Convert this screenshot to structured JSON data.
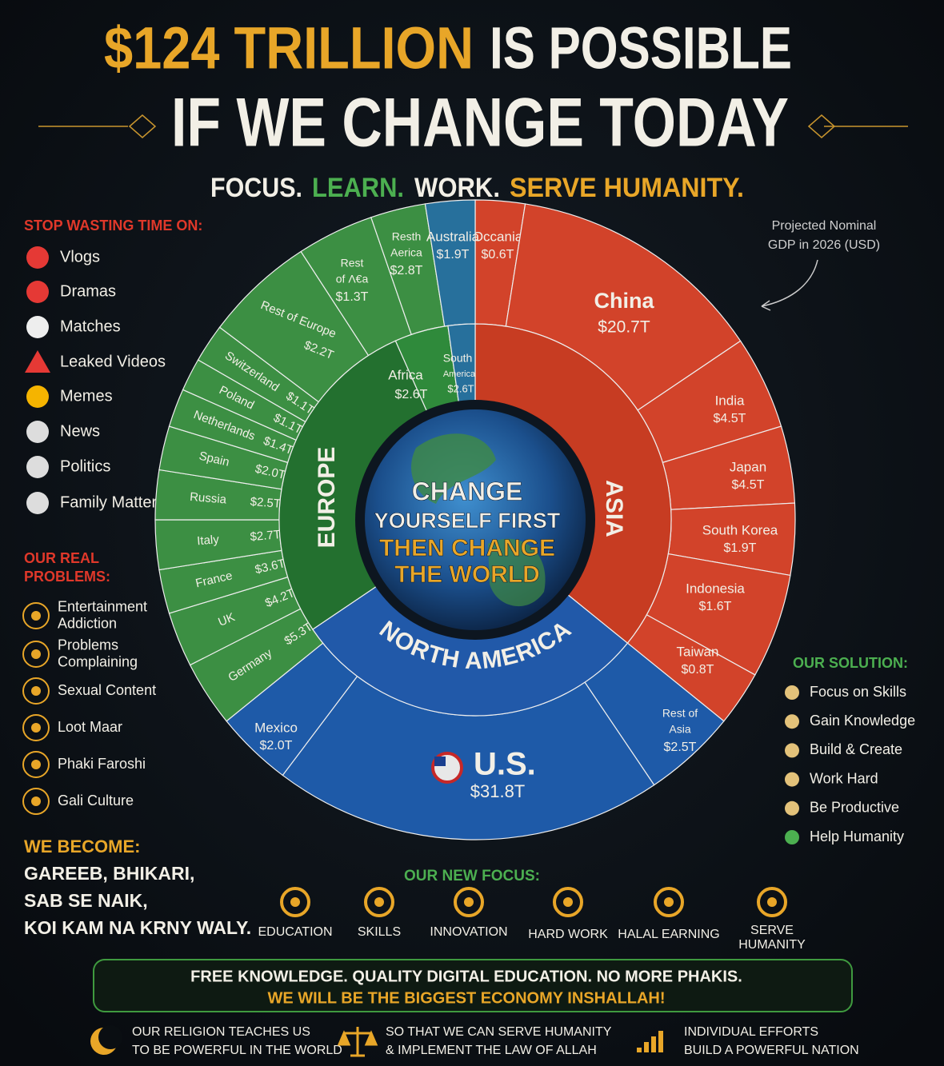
{
  "title": {
    "highlight": "$124 TRILLION",
    "rest": "IS POSSIBLE",
    "line2": "IF WE CHANGE TODAY"
  },
  "tagline": [
    "FOCUS.",
    "LEARN.",
    "WORK.",
    "SERVE HUMANITY."
  ],
  "stop_wasting": {
    "heading": "STOP WASTING TIME ON:",
    "items": [
      "Vlogs",
      "Dramas",
      "Matches",
      "Leaked Videos",
      "Memes",
      "News",
      "Politics",
      "Family Matters"
    ]
  },
  "real_problems": {
    "heading": [
      "OUR REAL",
      "PROBLEMS:"
    ],
    "items": [
      [
        "Entertainment",
        "Addiction"
      ],
      [
        "Problems",
        "Complaining"
      ],
      [
        "Sexual Content"
      ],
      [
        "Loot Maar"
      ],
      [
        "Phaki Faroshi"
      ],
      [
        "Gali Culture"
      ]
    ]
  },
  "we_become": {
    "heading": "WE BECOME:",
    "lines": [
      "GAREEB, BHIKARI,",
      "SAB SE NAIK,",
      "KOI KAM NA KRNY WALY."
    ]
  },
  "note": [
    "Projected Nominal",
    "GDP in 2026 (USD)"
  ],
  "sunburst": {
    "center": [
      "CHANGE",
      "YOURSELF FIRST",
      "THEN CHANGE",
      "THE WORLD"
    ],
    "regions": [
      {
        "name": "ASIA"
      },
      {
        "name": "NORTH AMERICA"
      },
      {
        "name": "EUROPE"
      },
      {
        "name": "Africa",
        "value": "$2.6T"
      },
      {
        "name": [
          "South",
          "America"
        ],
        "value": "$2.6T"
      }
    ],
    "segments": [
      {
        "name": "Occania",
        "value": "$0.6T"
      },
      {
        "name": "China",
        "value": "$20.7T"
      },
      {
        "name": "India",
        "value": "$4.5T"
      },
      {
        "name": "Japan",
        "value": "$4.5T"
      },
      {
        "name": "South Korea",
        "value": "$1.9T"
      },
      {
        "name": "Indonesia",
        "value": "$1.6T"
      },
      {
        "name": "Taiwan",
        "value": "$0.8T"
      },
      {
        "name": [
          "Rest of",
          "Asia"
        ],
        "value": "$2.5T"
      },
      {
        "name": "U.S.",
        "value": "$31.8T"
      },
      {
        "name": "Mexico",
        "value": "$2.0T"
      },
      {
        "name": "Germany",
        "value": "$5.3T"
      },
      {
        "name": "UK",
        "value": "$4.2T"
      },
      {
        "name": "France",
        "value": "$3.6T"
      },
      {
        "name": "Italy",
        "value": "$2.7T"
      },
      {
        "name": "Russia",
        "value": "$2.5T"
      },
      {
        "name": "Spain",
        "value": "$2.0T"
      },
      {
        "name": "Netherlands",
        "value": "$1.4T"
      },
      {
        "name": "Poland",
        "value": "$1.1T"
      },
      {
        "name": "Switzerland",
        "value": "$1.1T"
      },
      {
        "name": "Rest of Europe",
        "value": "$2.2T"
      },
      {
        "name": [
          "Rest",
          "of Λ€a"
        ],
        "value": "$1.3T"
      },
      {
        "name": [
          "Resth",
          "Aerica"
        ],
        "value": "$2.8T"
      },
      {
        "name": "Australia",
        "value": "$1.9T"
      }
    ]
  },
  "solution": {
    "heading": "OUR SOLUTION:",
    "items": [
      "Focus on Skills",
      "Gain Knowledge",
      "Build & Create",
      "Work Hard",
      "Be Productive",
      "Help Humanity"
    ]
  },
  "new_focus": {
    "heading": "OUR NEW FOCUS:",
    "items": [
      [
        "EDUCATION"
      ],
      [
        "SKILLS"
      ],
      [
        "INNOVATION"
      ],
      [
        "HARD WORK"
      ],
      [
        "HALAL EARNING"
      ],
      [
        "SERVE",
        "HUMANITY"
      ]
    ]
  },
  "banner": [
    "FREE KNOWLEDGE. QUALITY DIGITAL EDUCATION. NO MORE PHAKIS.",
    "WE WILL BE THE BIGGEST ECONOMY INSHALLAH!"
  ],
  "footer": [
    [
      "OUR RELIGION TEACHES US",
      "TO BE POWERFUL IN THE WORLD"
    ],
    [
      "SO THAT WE CAN SERVE HUMANITY",
      "& IMPLEMENT THE LAW OF ALLAH"
    ],
    [
      "INDIVIDUAL EFFORTS",
      "BUILD A POWERFUL NATION"
    ]
  ]
}
